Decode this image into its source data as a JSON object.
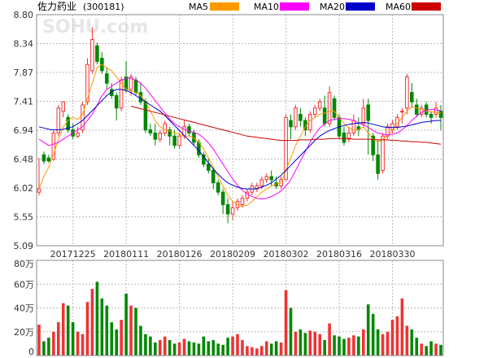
{
  "chart_data": {
    "type": "candlestick",
    "title": "佐力药业",
    "code": "(300181)",
    "watermark": "SOHU.com",
    "price_axis": {
      "ticks": [
        "8.80",
        "8.34",
        "7.87",
        "7.41",
        "6.94",
        "6.48",
        "6.02",
        "5.55",
        "5.09"
      ],
      "ylim": [
        5.09,
        8.8
      ]
    },
    "volume_axis": {
      "ticks": [
        "80万",
        "60万",
        "40万",
        "20万",
        "0"
      ],
      "ylim": [
        0,
        80
      ]
    },
    "x_ticks": [
      {
        "label": "20171225",
        "index": 7
      },
      {
        "label": "20180111",
        "index": 18
      },
      {
        "label": "20180126",
        "index": 29
      },
      {
        "label": "20180209",
        "index": 40
      },
      {
        "label": "20180302",
        "index": 51
      },
      {
        "label": "20180316",
        "index": 62
      },
      {
        "label": "20180330",
        "index": 73
      }
    ],
    "legend": [
      {
        "name": "MA5",
        "color": "#ff9900"
      },
      {
        "name": "MA10",
        "color": "#ff00ff"
      },
      {
        "name": "MA20",
        "color": "#0000cc"
      },
      {
        "name": "MA60",
        "color": "#cc0000"
      }
    ],
    "colors": {
      "up": "#ee3333",
      "down": "#008800",
      "axis": "#888888",
      "grid": "#bbbbbb"
    },
    "ohlc": [
      [
        5.95,
        6.5,
        6.0,
        5.9
      ],
      [
        6.55,
        6.6,
        6.45,
        6.4
      ],
      [
        6.5,
        6.55,
        6.45,
        6.42
      ],
      [
        6.48,
        6.95,
        6.9,
        6.45
      ],
      [
        6.9,
        7.35,
        7.3,
        6.85
      ],
      [
        7.25,
        7.4,
        7.4,
        7.15
      ],
      [
        7.15,
        7.2,
        6.95,
        6.9
      ],
      [
        6.95,
        7.05,
        6.85,
        6.8
      ],
      [
        6.85,
        7.0,
        6.9,
        6.82
      ],
      [
        6.95,
        7.4,
        7.35,
        6.9
      ],
      [
        7.4,
        8.1,
        8.0,
        7.35
      ],
      [
        7.9,
        8.6,
        8.4,
        7.85
      ],
      [
        8.3,
        8.35,
        8.05,
        8.0
      ],
      [
        8.1,
        8.2,
        7.9,
        7.85
      ],
      [
        7.85,
        7.95,
        7.7,
        7.6
      ],
      [
        7.6,
        7.7,
        7.5,
        7.45
      ],
      [
        7.5,
        7.55,
        7.3,
        7.1
      ],
      [
        7.3,
        7.8,
        7.75,
        7.25
      ],
      [
        7.8,
        8.05,
        7.6,
        7.55
      ],
      [
        7.6,
        7.85,
        7.8,
        7.5
      ],
      [
        7.75,
        7.8,
        7.55,
        7.5
      ],
      [
        7.55,
        7.7,
        7.4,
        7.35
      ],
      [
        7.4,
        7.45,
        6.95,
        6.9
      ],
      [
        6.95,
        7.05,
        6.9,
        6.85
      ],
      [
        6.9,
        7.05,
        6.8,
        6.7
      ],
      [
        6.8,
        6.95,
        6.9,
        6.75
      ],
      [
        6.9,
        7.1,
        7.05,
        6.85
      ],
      [
        6.95,
        7.0,
        6.85,
        6.7
      ],
      [
        6.85,
        6.95,
        6.7,
        6.65
      ],
      [
        6.7,
        6.9,
        6.85,
        6.65
      ],
      [
        6.85,
        7.1,
        7.0,
        6.8
      ],
      [
        7.0,
        7.05,
        6.9,
        6.85
      ],
      [
        6.9,
        6.95,
        6.75,
        6.7
      ],
      [
        6.75,
        6.8,
        6.55,
        6.5
      ],
      [
        6.55,
        6.6,
        6.4,
        6.35
      ],
      [
        6.4,
        6.5,
        6.3,
        6.25
      ],
      [
        6.3,
        6.35,
        6.1,
        6.0
      ],
      [
        6.1,
        6.15,
        5.95,
        5.9
      ],
      [
        5.95,
        6.0,
        5.75,
        5.6
      ],
      [
        5.75,
        5.85,
        5.6,
        5.45
      ],
      [
        5.6,
        5.8,
        5.7,
        5.5
      ],
      [
        5.7,
        5.85,
        5.8,
        5.65
      ],
      [
        5.75,
        5.9,
        5.85,
        5.7
      ],
      [
        5.85,
        6.0,
        5.95,
        5.8
      ],
      [
        5.95,
        6.1,
        6.05,
        5.9
      ],
      [
        6.0,
        6.1,
        6.05,
        5.95
      ],
      [
        6.05,
        6.2,
        6.15,
        6.0
      ],
      [
        6.15,
        6.25,
        6.2,
        6.1
      ],
      [
        6.2,
        6.3,
        6.15,
        6.05
      ],
      [
        6.1,
        6.2,
        6.05,
        6.0
      ],
      [
        6.05,
        6.2,
        6.15,
        6.0
      ],
      [
        6.15,
        7.2,
        7.15,
        6.4
      ],
      [
        7.1,
        7.2,
        7.0,
        6.8
      ],
      [
        7.0,
        7.35,
        7.3,
        6.95
      ],
      [
        7.2,
        7.3,
        7.1,
        7.0
      ],
      [
        7.1,
        7.15,
        6.95,
        6.85
      ],
      [
        6.95,
        7.25,
        7.2,
        6.9
      ],
      [
        7.2,
        7.35,
        7.3,
        7.15
      ],
      [
        7.3,
        7.45,
        7.4,
        7.25
      ],
      [
        7.3,
        7.5,
        7.05,
        7.0
      ],
      [
        7.05,
        7.65,
        7.55,
        7.0
      ],
      [
        7.45,
        7.5,
        7.15,
        7.1
      ],
      [
        7.15,
        7.2,
        6.85,
        6.8
      ],
      [
        6.9,
        7.0,
        6.75,
        6.7
      ],
      [
        6.8,
        7.0,
        6.9,
        6.75
      ],
      [
        6.9,
        7.2,
        7.1,
        6.85
      ],
      [
        7.0,
        7.15,
        6.95,
        6.85
      ],
      [
        7.05,
        7.45,
        7.3,
        7.0
      ],
      [
        7.35,
        7.45,
        7.1,
        6.55
      ],
      [
        6.85,
        6.9,
        6.55,
        6.45
      ],
      [
        6.55,
        6.8,
        6.25,
        6.15
      ],
      [
        6.3,
        6.9,
        6.85,
        6.25
      ],
      [
        6.85,
        7.05,
        7.0,
        6.8
      ],
      [
        6.95,
        7.1,
        7.05,
        6.9
      ],
      [
        7.0,
        7.2,
        7.15,
        6.95
      ],
      [
        7.25,
        7.3,
        7.25,
        7.05
      ],
      [
        7.3,
        7.85,
        7.8,
        7.2
      ],
      [
        7.55,
        7.7,
        7.4,
        7.3
      ],
      [
        7.35,
        7.45,
        7.2,
        7.15
      ],
      [
        7.2,
        7.35,
        7.3,
        7.15
      ],
      [
        7.35,
        7.4,
        7.2,
        7.15
      ],
      [
        7.2,
        7.25,
        7.15,
        7.05
      ],
      [
        7.2,
        7.4,
        7.3,
        7.15
      ],
      [
        7.25,
        7.35,
        7.15,
        6.95
      ]
    ],
    "volume": [
      26,
      12,
      15,
      20,
      28,
      44,
      42,
      28,
      20,
      18,
      45,
      56,
      62,
      48,
      42,
      28,
      22,
      30,
      52,
      42,
      40,
      25,
      18,
      16,
      11,
      13,
      16,
      13,
      10,
      11,
      14,
      12,
      11,
      10,
      16,
      12,
      13,
      10,
      9,
      15,
      16,
      18,
      13,
      8,
      7,
      6,
      8,
      12,
      10,
      12,
      11,
      55,
      40,
      20,
      22,
      19,
      21,
      20,
      18,
      13,
      27,
      17,
      16,
      14,
      15,
      17,
      16,
      22,
      43,
      35,
      22,
      18,
      20,
      30,
      33,
      48,
      25,
      22,
      15,
      10,
      8,
      12,
      10,
      9
    ],
    "ma5": [
      6.0,
      6.2,
      6.35,
      6.55,
      6.8,
      7.0,
      7.1,
      7.15,
      7.12,
      7.2,
      7.45,
      7.7,
      7.95,
      8.0,
      7.95,
      7.9,
      7.8,
      7.7,
      7.6,
      7.58,
      7.55,
      7.5,
      7.4,
      7.25,
      7.1,
      7.0,
      6.95,
      6.93,
      6.9,
      6.88,
      6.85,
      6.85,
      6.82,
      6.75,
      6.65,
      6.5,
      6.35,
      6.2,
      6.05,
      5.9,
      5.8,
      5.75,
      5.72,
      5.74,
      5.8,
      5.88,
      5.95,
      6.0,
      6.05,
      6.08,
      6.1,
      6.3,
      6.5,
      6.7,
      6.85,
      7.0,
      7.1,
      7.15,
      7.2,
      7.22,
      7.25,
      7.25,
      7.15,
      7.05,
      6.98,
      6.95,
      6.95,
      7.0,
      6.9,
      6.8,
      6.75,
      6.8,
      6.85,
      6.95,
      7.05,
      7.15,
      7.25,
      7.32,
      7.3,
      7.28,
      7.25,
      7.24,
      7.23,
      7.22
    ],
    "ma10": [
      6.8,
      6.75,
      6.7,
      6.72,
      6.75,
      6.8,
      6.85,
      6.9,
      6.95,
      7.0,
      7.1,
      7.2,
      7.35,
      7.5,
      7.6,
      7.65,
      7.7,
      7.75,
      7.78,
      7.78,
      7.75,
      7.7,
      7.62,
      7.52,
      7.42,
      7.32,
      7.22,
      7.12,
      7.05,
      7.0,
      6.96,
      6.93,
      6.91,
      6.88,
      6.82,
      6.74,
      6.64,
      6.52,
      6.4,
      6.28,
      6.16,
      6.06,
      5.98,
      5.92,
      5.88,
      5.85,
      5.84,
      5.85,
      5.88,
      5.92,
      5.97,
      6.05,
      6.15,
      6.3,
      6.45,
      6.6,
      6.75,
      6.88,
      6.98,
      7.05,
      7.1,
      7.12,
      7.13,
      7.13,
      7.12,
      7.1,
      7.06,
      7.03,
      6.99,
      6.94,
      6.9,
      6.88,
      6.87,
      6.88,
      6.9,
      6.95,
      7.02,
      7.1,
      7.17,
      7.23,
      7.27,
      7.28,
      7.27,
      7.26
    ],
    "ma20": [
      7.0,
      6.98,
      6.96,
      6.95,
      6.95,
      6.96,
      6.98,
      7.0,
      7.05,
      7.1,
      7.18,
      7.26,
      7.34,
      7.42,
      7.5,
      7.56,
      7.6,
      7.6,
      7.58,
      7.55,
      7.5,
      7.45,
      7.4,
      7.35,
      7.3,
      7.25,
      7.18,
      7.1,
      7.02,
      6.94,
      6.86,
      6.78,
      6.7,
      6.62,
      6.52,
      6.42,
      6.32,
      6.24,
      6.16,
      6.1,
      6.06,
      6.03,
      6.01,
      6.0,
      6.0,
      6.01,
      6.03,
      6.06,
      6.1,
      6.16,
      6.22,
      6.3,
      6.38,
      6.46,
      6.54,
      6.62,
      6.7,
      6.78,
      6.85,
      6.9,
      6.94,
      6.97,
      7.0,
      7.02,
      7.04,
      7.05,
      7.06,
      7.07,
      7.06,
      7.04,
      7.02,
      7.0,
      6.99,
      6.99,
      6.99,
      7.0,
      7.01,
      7.03,
      7.05,
      7.07,
      7.08,
      7.09,
      7.1,
      7.1
    ],
    "ma60": [
      null,
      null,
      null,
      null,
      null,
      null,
      null,
      null,
      null,
      null,
      null,
      null,
      null,
      null,
      null,
      null,
      null,
      null,
      null,
      7.33,
      7.31,
      7.29,
      7.27,
      7.25,
      7.23,
      7.21,
      7.19,
      7.17,
      7.15,
      7.13,
      7.11,
      7.09,
      7.07,
      7.05,
      7.03,
      7.01,
      6.99,
      6.97,
      6.95,
      6.93,
      6.91,
      6.89,
      6.87,
      6.85,
      6.84,
      6.83,
      6.82,
      6.81,
      6.8,
      6.79,
      6.78,
      6.78,
      6.78,
      6.78,
      6.79,
      6.79,
      6.79,
      6.8,
      6.8,
      6.8,
      6.81,
      6.81,
      6.81,
      6.81,
      6.81,
      6.8,
      6.8,
      6.8,
      6.8,
      6.8,
      6.79,
      6.79,
      6.79,
      6.78,
      6.78,
      6.77,
      6.77,
      6.76,
      6.76,
      6.75,
      6.75,
      6.74,
      6.73,
      6.72
    ]
  }
}
